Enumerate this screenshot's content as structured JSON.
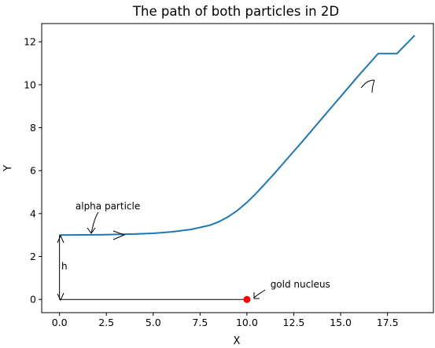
{
  "chart_data": {
    "type": "line",
    "title": "The path of both particles in 2D",
    "xlabel": "X",
    "ylabel": "Y",
    "xlim": [
      -0.95,
      19.95
    ],
    "ylim": [
      -0.615,
      12.85
    ],
    "xticks": [
      0,
      2.5,
      5,
      7.5,
      10,
      12.5,
      15,
      17.5
    ],
    "xtick_labels": [
      "0.0",
      "2.5",
      "5.0",
      "7.5",
      "10.0",
      "12.5",
      "15.0",
      "17.5"
    ],
    "yticks": [
      0,
      2,
      4,
      6,
      8,
      10,
      12
    ],
    "ytick_labels": [
      "0",
      "2",
      "4",
      "6",
      "8",
      "10",
      "12"
    ],
    "grid": false,
    "series": [
      {
        "color": "#1f77b4",
        "x": [
          0,
          2,
          4,
          5,
          6,
          7,
          8,
          8.5,
          9,
          9.5,
          10,
          10.5,
          11,
          11.5,
          12,
          13,
          14,
          15,
          16,
          17,
          18,
          19
        ],
        "y": [
          3.0,
          3.01,
          3.05,
          3.08,
          3.15,
          3.26,
          3.45,
          3.62,
          3.85,
          4.15,
          4.52,
          4.95,
          5.42,
          5.9,
          6.4,
          7.4,
          8.43,
          9.45,
          10.47,
          11.45,
          12.3,
          12.3
        ]
      }
    ],
    "reference_lines": [
      {
        "x": [
          0,
          10
        ],
        "y": [
          0,
          0
        ],
        "color": "#000000"
      },
      {
        "x": [
          0,
          0
        ],
        "y": [
          0,
          3
        ],
        "color": "#000000"
      }
    ],
    "points": [
      {
        "x": 10,
        "y": 0,
        "color": "#ff0000"
      }
    ],
    "annotations": [
      {
        "text": "alpha particle",
        "x": 0.85,
        "y": 4.2
      },
      {
        "text": "gold nucleus",
        "x": 11.25,
        "y": 0.55
      },
      {
        "text": "h",
        "x": 0.1,
        "y": 1.4
      }
    ]
  }
}
